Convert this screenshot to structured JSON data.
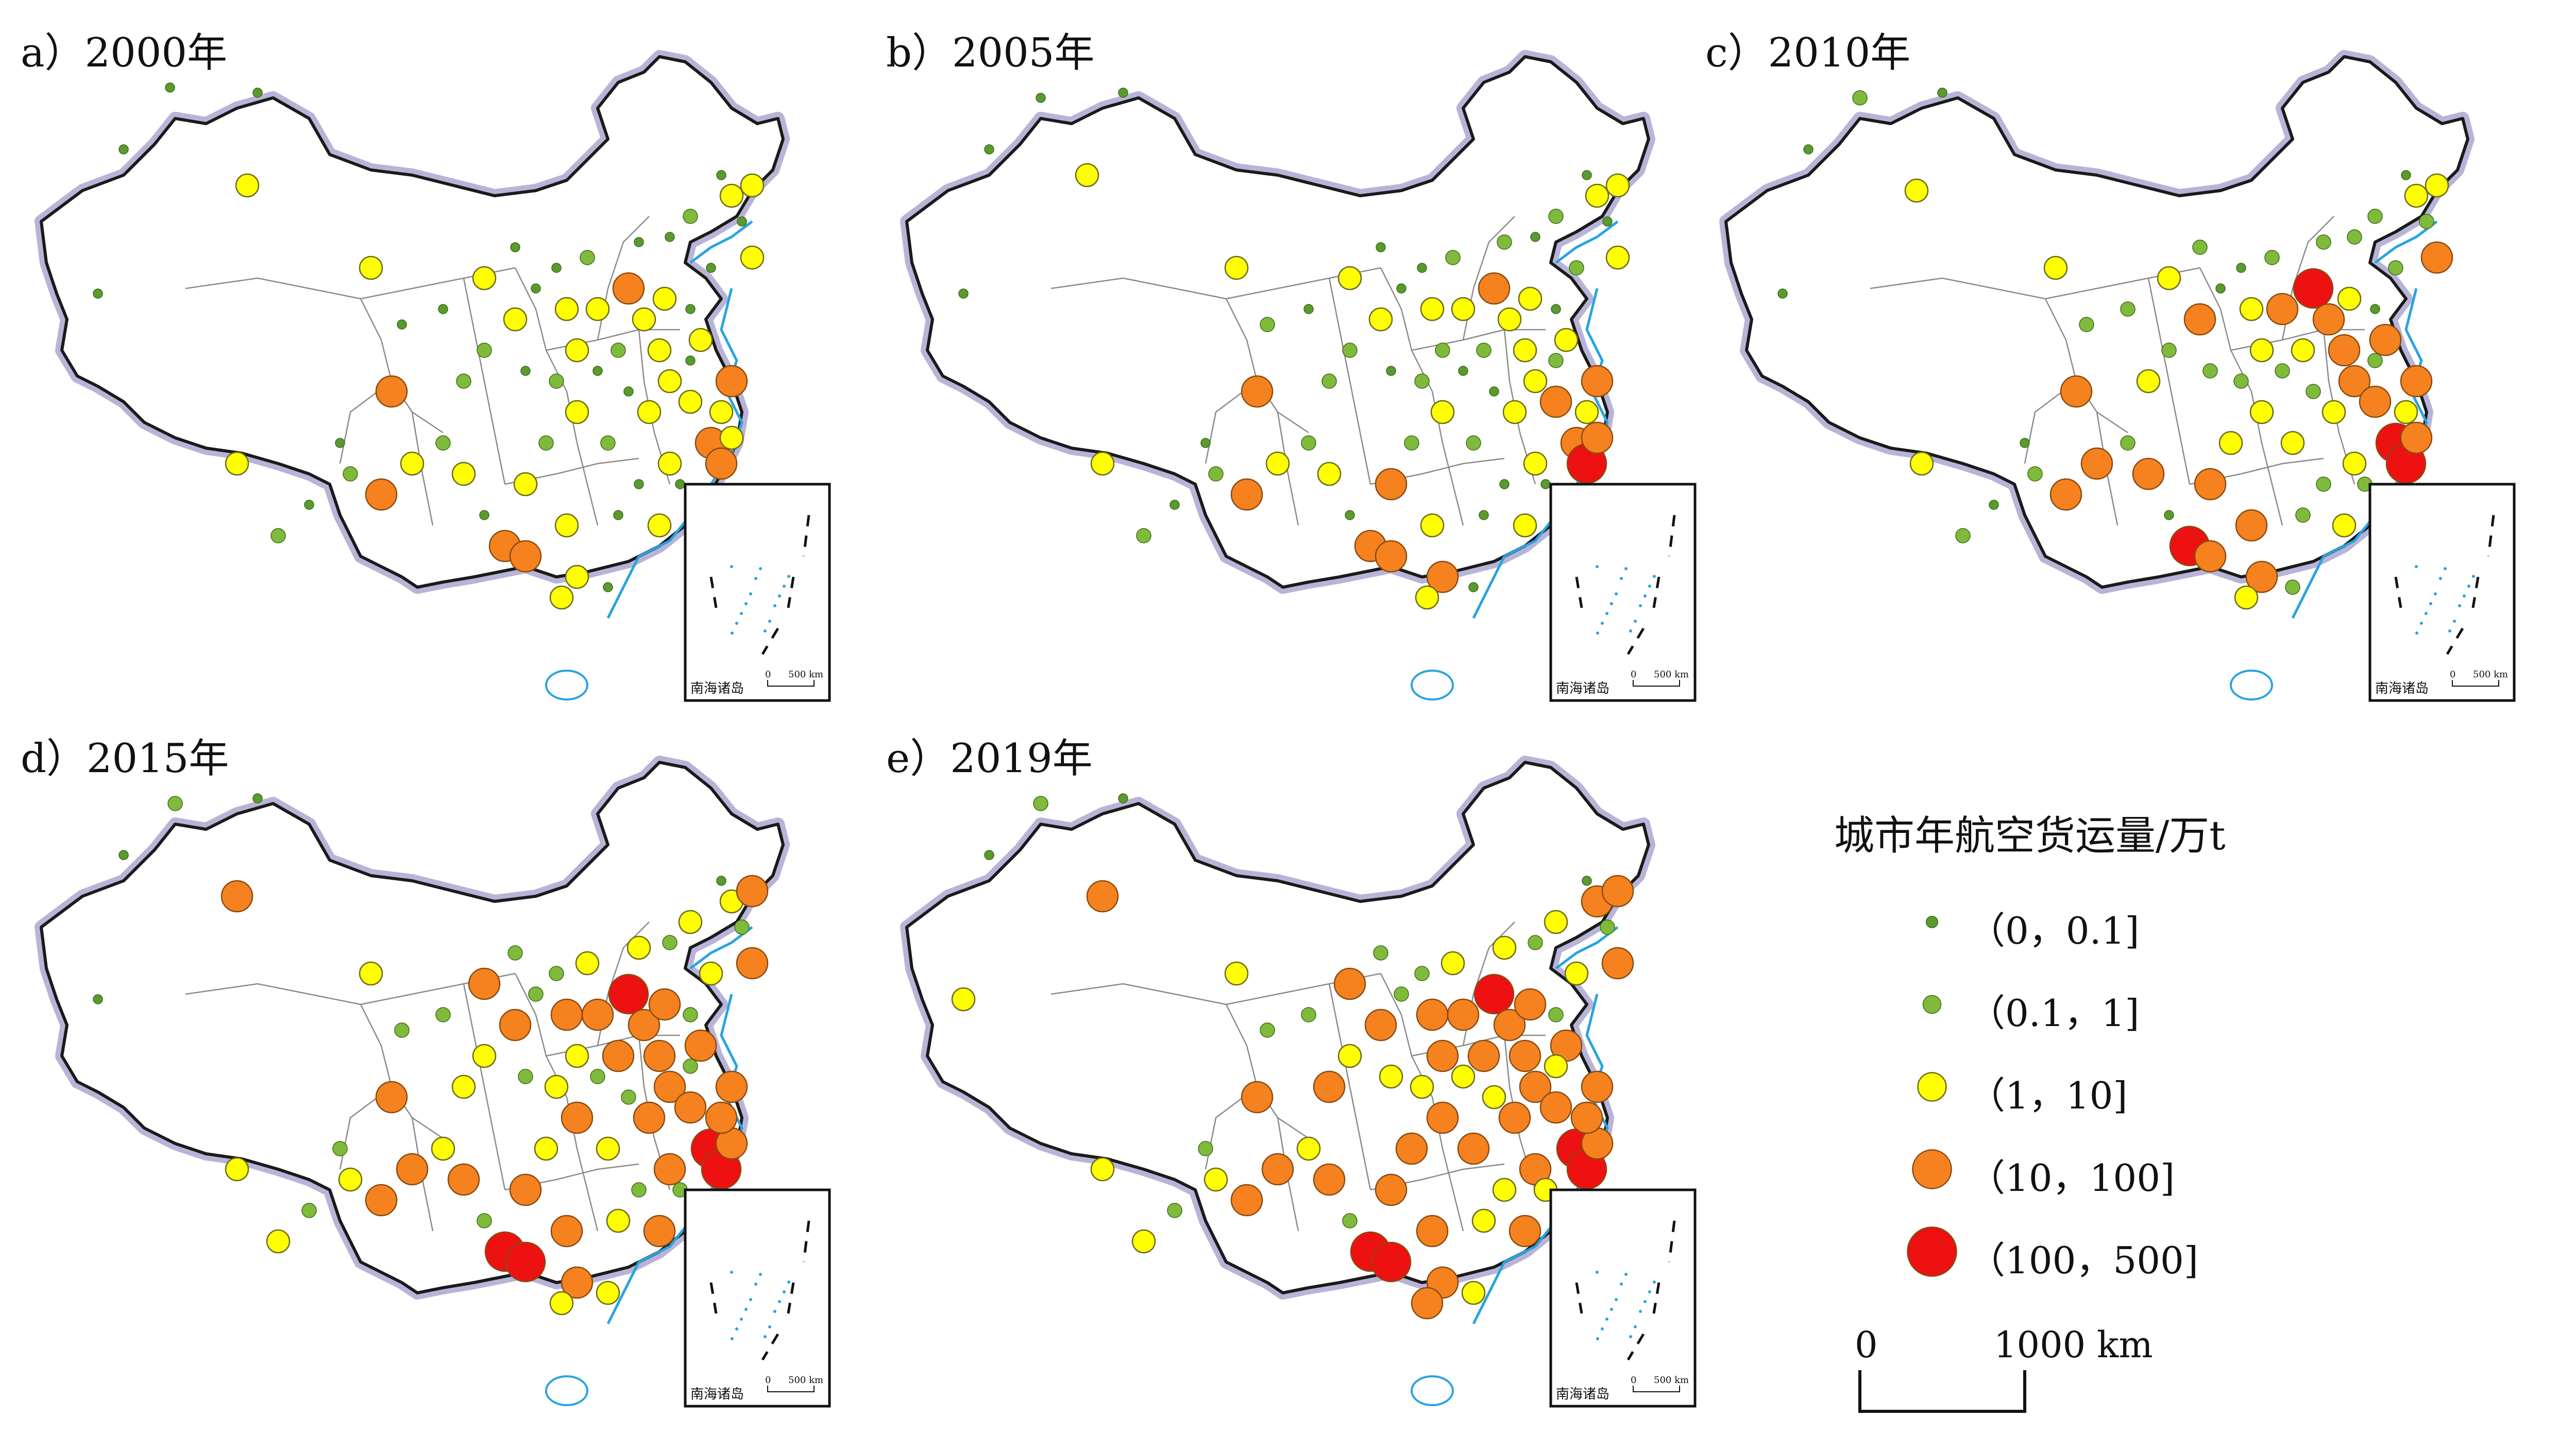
{
  "panels": [
    {
      "label": "a）2000年",
      "year": "2000"
    },
    {
      "label": "b）2005年",
      "year": "2005"
    },
    {
      "label": "c）2010年",
      "year": "2010"
    },
    {
      "label": "d）2015年",
      "year": "2015"
    },
    {
      "label": "e）2019年",
      "year": "2019"
    }
  ],
  "inset_label": "南海诸岛",
  "inset_scale": {
    "zero": "0",
    "value": "500 km"
  },
  "legend": {
    "title": "城市年航空货运量/万t",
    "classes": [
      {
        "label": "（0，0.1]",
        "color": "#5a9a2e",
        "size": "tiny"
      },
      {
        "label": "（0.1，1]",
        "color": "#7fba3a",
        "size": "small"
      },
      {
        "label": "（1，10]",
        "color": "#ffff00",
        "size": "medium"
      },
      {
        "label": "（10，100]",
        "color": "#f5821f",
        "size": "large"
      },
      {
        "label": "（100，500]",
        "color": "#ee1111",
        "size": "xlarge"
      }
    ]
  },
  "scale_bar": {
    "zero": "0",
    "value": "1000",
    "unit": "km"
  },
  "colors": {
    "boundary": "#1a1a1a",
    "halo": "#b8b4d8",
    "river": "#29a3e0",
    "province": "#8a8a8a"
  }
}
